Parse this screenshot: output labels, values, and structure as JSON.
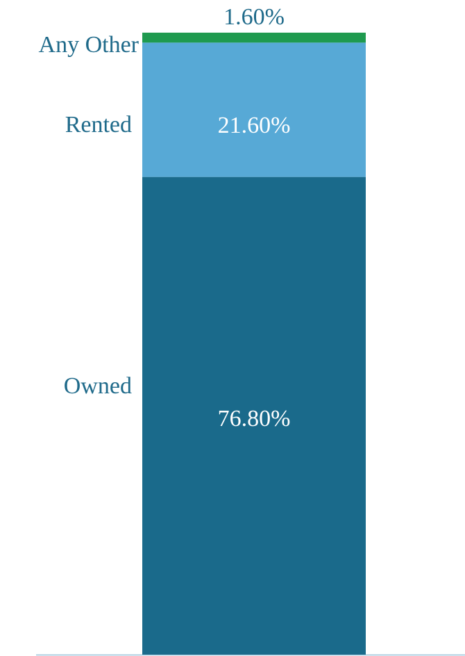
{
  "chart_data": {
    "type": "stacked_bar",
    "series": [
      {
        "name": "Owned",
        "color": "#1a6a8b",
        "values": [
          76.8
        ],
        "value_labels": [
          "76.80%"
        ]
      },
      {
        "name": "Rented",
        "color": "#57a9d6",
        "values": [
          21.6
        ],
        "value_labels": [
          "21.60%"
        ]
      },
      {
        "name": "Any Other",
        "color": "#1f9a4f",
        "values": [
          1.6
        ],
        "value_labels": [
          "1.60%"
        ]
      }
    ]
  }
}
